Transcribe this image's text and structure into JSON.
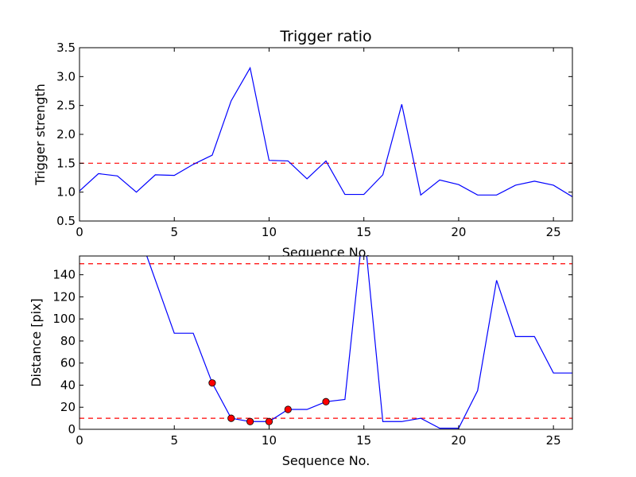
{
  "chart_data": [
    {
      "type": "line",
      "title": "Trigger ratio",
      "xlabel": "Sequence No.",
      "ylabel": "Trigger strength",
      "xlim": [
        0,
        26
      ],
      "ylim": [
        0.5,
        3.5
      ],
      "xticks": [
        0,
        5,
        10,
        15,
        20,
        25
      ],
      "xtick_labels": [
        "0",
        "5",
        "10",
        "15",
        "20",
        "25"
      ],
      "yticks": [
        0.5,
        1.0,
        1.5,
        2.0,
        2.5,
        3.0,
        3.5
      ],
      "ytick_labels": [
        "0.5",
        "1.0",
        "1.5",
        "2.0",
        "2.5",
        "3.0",
        "3.5"
      ],
      "grid": false,
      "series": [
        {
          "color": "#0000ff",
          "x": [
            0,
            1,
            2,
            3,
            4,
            5,
            6,
            7,
            8,
            9,
            10,
            11,
            12,
            13,
            14,
            15,
            16,
            17,
            18,
            19,
            20,
            21,
            22,
            23,
            24,
            25,
            26
          ],
          "y": [
            1.02,
            1.32,
            1.28,
            1.0,
            1.3,
            1.29,
            1.48,
            1.64,
            2.58,
            3.15,
            1.55,
            1.54,
            1.23,
            1.54,
            0.96,
            0.96,
            1.3,
            2.52,
            0.95,
            1.21,
            1.13,
            0.95,
            0.95,
            1.12,
            1.19,
            1.12,
            0.92
          ]
        }
      ],
      "hlines": [
        {
          "y": 1.5,
          "color": "#ff0000",
          "style": "dashed"
        }
      ]
    },
    {
      "type": "line",
      "title": "",
      "xlabel": "Sequence No.",
      "ylabel": "Distance [pix]",
      "xlim": [
        0,
        26
      ],
      "ylim": [
        0,
        157
      ],
      "xticks": [
        0,
        5,
        10,
        15,
        20,
        25
      ],
      "xtick_labels": [
        "0",
        "5",
        "10",
        "15",
        "20",
        "25"
      ],
      "yticks": [
        0,
        20,
        40,
        60,
        80,
        100,
        120,
        140
      ],
      "ytick_labels": [
        "0",
        "20",
        "40",
        "60",
        "80",
        "100",
        "120",
        "140"
      ],
      "grid": false,
      "series": [
        {
          "color": "#0000ff",
          "x": [
            3.55,
            5,
            6,
            7,
            8,
            9,
            10,
            11,
            12,
            13,
            14,
            14.8,
            15.15,
            16,
            17,
            18,
            19,
            20,
            21,
            22,
            23,
            24,
            25,
            26
          ],
          "y": [
            157,
            87,
            87,
            42,
            10,
            7,
            7,
            18,
            18,
            25,
            27,
            157,
            157,
            7,
            7,
            10,
            1,
            1,
            35,
            135,
            84,
            84,
            51,
            51
          ]
        }
      ],
      "markers": {
        "color": "#ff0000",
        "x": [
          7,
          8,
          9,
          10,
          11,
          13
        ],
        "y": [
          42,
          10,
          7,
          7,
          18,
          25
        ]
      },
      "hlines": [
        {
          "y": 150,
          "color": "#ff0000",
          "style": "dashed"
        },
        {
          "y": 10,
          "color": "#ff0000",
          "style": "dashed"
        }
      ]
    }
  ]
}
